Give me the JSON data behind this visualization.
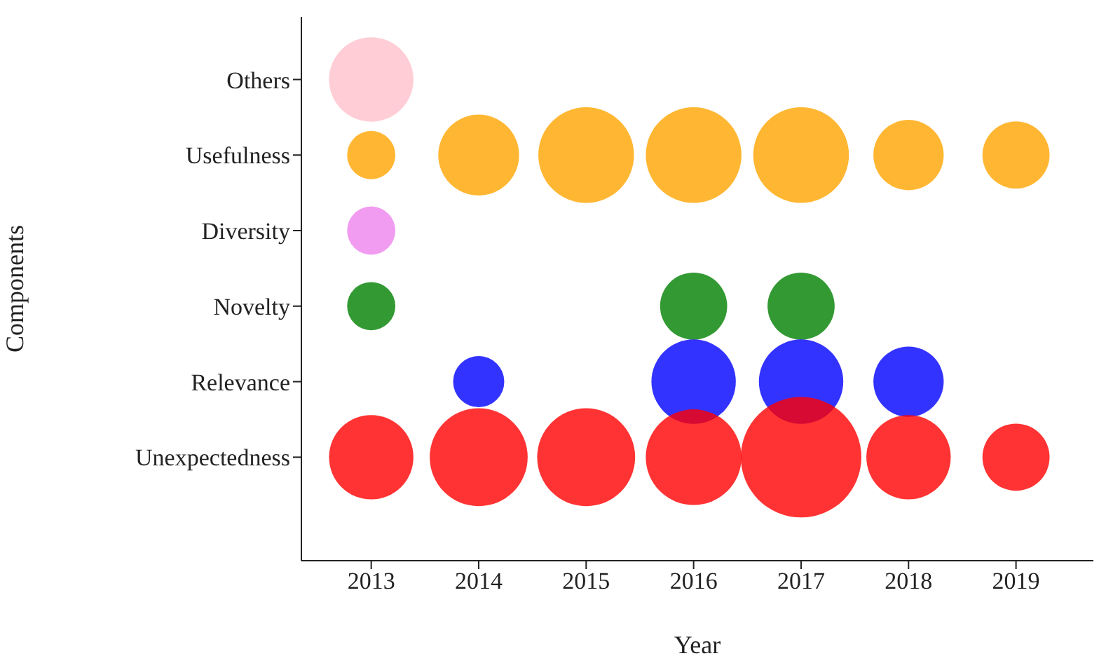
{
  "chart_data": {
    "type": "bubble",
    "orientation": "horizontal",
    "xlabel": "Year",
    "ylabel": "Components",
    "categories": [
      "Others",
      "Usefulness",
      "Diversity",
      "Novelty",
      "Relevance",
      "Unexpectedness"
    ],
    "xlim": [
      2012.35,
      2019.72
    ],
    "xticks": [
      2013,
      2014,
      2015,
      2016,
      2017,
      2018,
      2019
    ],
    "legend": false,
    "grid": false,
    "series": [
      {
        "colors": [
          "#ffc0cb",
          "#ffa500",
          "#ee82ee",
          "#008000",
          "#0000ff",
          "#ff0000"
        ],
        "values": [
          2013,
          2013,
          2013,
          2013,
          null,
          2013
        ],
        "sizes": [
          0.49,
          0.16,
          0.16,
          0.16,
          null,
          0.49
        ]
      },
      {
        "colors": [
          "#ffc0cb",
          "#ffa500",
          "#ee82ee",
          "#008000",
          "#0000ff",
          "#ff0000"
        ],
        "values": [
          null,
          2014,
          null,
          null,
          2014,
          2014
        ],
        "sizes": [
          null,
          0.45,
          null,
          null,
          0.18,
          0.66
        ]
      },
      {
        "colors": [
          "#ffc0cb",
          "#ffa500",
          "#ee82ee",
          "#008000",
          "#0000ff",
          "#ff0000"
        ],
        "values": [
          null,
          2015,
          null,
          null,
          null,
          2015
        ],
        "sizes": [
          null,
          0.63,
          null,
          null,
          null,
          0.66
        ]
      },
      {
        "colors": [
          "#ffc0cb",
          "#ffa500",
          "#ee82ee",
          "#008000",
          "#0000ff",
          "#ff0000"
        ],
        "values": [
          null,
          2016,
          null,
          2016,
          2016,
          2016
        ],
        "sizes": [
          null,
          0.63,
          null,
          0.31,
          0.49,
          0.63
        ]
      },
      {
        "colors": [
          "#ffc0cb",
          "#ffa500",
          "#ee82ee",
          "#008000",
          "#0000ff",
          "#ff0000"
        ],
        "values": [
          null,
          2017,
          null,
          2017,
          2017,
          2017
        ],
        "sizes": [
          null,
          0.63,
          null,
          0.31,
          0.49,
          1
        ]
      },
      {
        "colors": [
          "#ffc0cb",
          "#ffa500",
          "#ee82ee",
          "#008000",
          "#0000ff",
          "#ff0000"
        ],
        "values": [
          null,
          2018,
          null,
          null,
          2018,
          2018
        ],
        "sizes": [
          null,
          0.34,
          null,
          null,
          0.34,
          0.49
        ]
      },
      {
        "colors": [
          "#ffc0cb",
          "#ffa500",
          "#ee82ee",
          "#008000",
          "#0000ff",
          "#ff0000"
        ],
        "values": [
          null,
          2019,
          null,
          null,
          null,
          2019
        ],
        "sizes": [
          null,
          0.31,
          null,
          null,
          null,
          0.31
        ]
      }
    ]
  }
}
